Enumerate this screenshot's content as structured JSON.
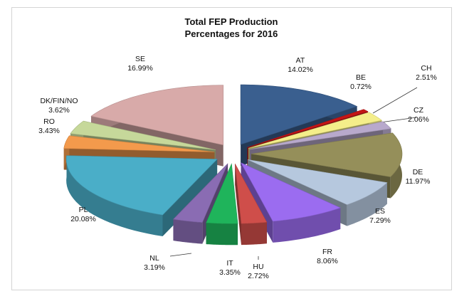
{
  "chart_data": {
    "type": "pie",
    "variant": "3d-exploded",
    "title": [
      "Total FEP Production",
      "Percentages for 2016"
    ],
    "legend": "none",
    "slices": [
      {
        "name": "AT",
        "value": 14.02,
        "label": "14.02%",
        "color": "#3a5f8f"
      },
      {
        "name": "BE",
        "value": 0.72,
        "label": "0.72%",
        "color": "#c41616"
      },
      {
        "name": "CH",
        "value": 2.51,
        "label": "2.51%",
        "color": "#f4ee8a"
      },
      {
        "name": "CZ",
        "value": 2.06,
        "label": "2.06%",
        "color": "#b8a9cc"
      },
      {
        "name": "DE",
        "value": 11.97,
        "label": "11.97%",
        "color": "#958f5a"
      },
      {
        "name": "ES",
        "value": 7.29,
        "label": "7.29%",
        "color": "#b6c8de"
      },
      {
        "name": "FR",
        "value": 8.06,
        "label": "8.06%",
        "color": "#9b6cf0"
      },
      {
        "name": "HU",
        "value": 2.72,
        "label": "2.72%",
        "color": "#cf4e4a"
      },
      {
        "name": "IT",
        "value": 3.35,
        "label": "3.35%",
        "color": "#1fb45b"
      },
      {
        "name": "NL",
        "value": 3.19,
        "label": "3.19%",
        "color": "#8a6cb3"
      },
      {
        "name": "PL",
        "value": 20.08,
        "label": "20.08%",
        "color": "#4aaec8"
      },
      {
        "name": "RO",
        "value": 3.43,
        "label": "3.43%",
        "color": "#f39a4c"
      },
      {
        "name": "DK/FIN/NO",
        "value": 3.62,
        "label": "3.62%",
        "color": "#c6d89a"
      },
      {
        "name": "SE",
        "value": 16.99,
        "label": "16.99%",
        "color": "#d8aaa9"
      }
    ]
  }
}
